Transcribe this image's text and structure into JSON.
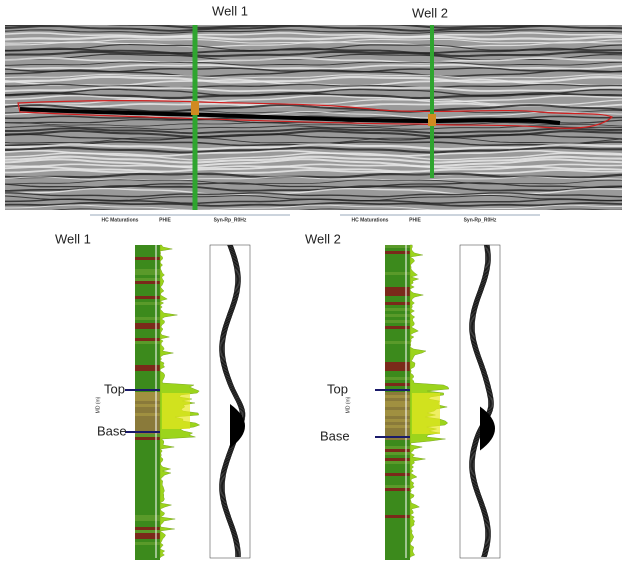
{
  "seismic": {
    "wells": [
      {
        "label": "Well 1"
      },
      {
        "label": "Well 2"
      }
    ]
  },
  "logs": [
    {
      "label": "Well 1",
      "top": "Top",
      "base": "Base",
      "tracks": [
        "HC Maturations",
        "PHIE",
        "Syn-Rp_R0Hz"
      ],
      "depth_axis": "MD (m)"
    },
    {
      "label": "Well 2",
      "top": "Top",
      "base": "Base",
      "tracks": [
        "HC Maturations",
        "PHIE",
        "Syn-Rp_R0Hz"
      ],
      "depth_axis": "MD (m)"
    }
  ]
}
